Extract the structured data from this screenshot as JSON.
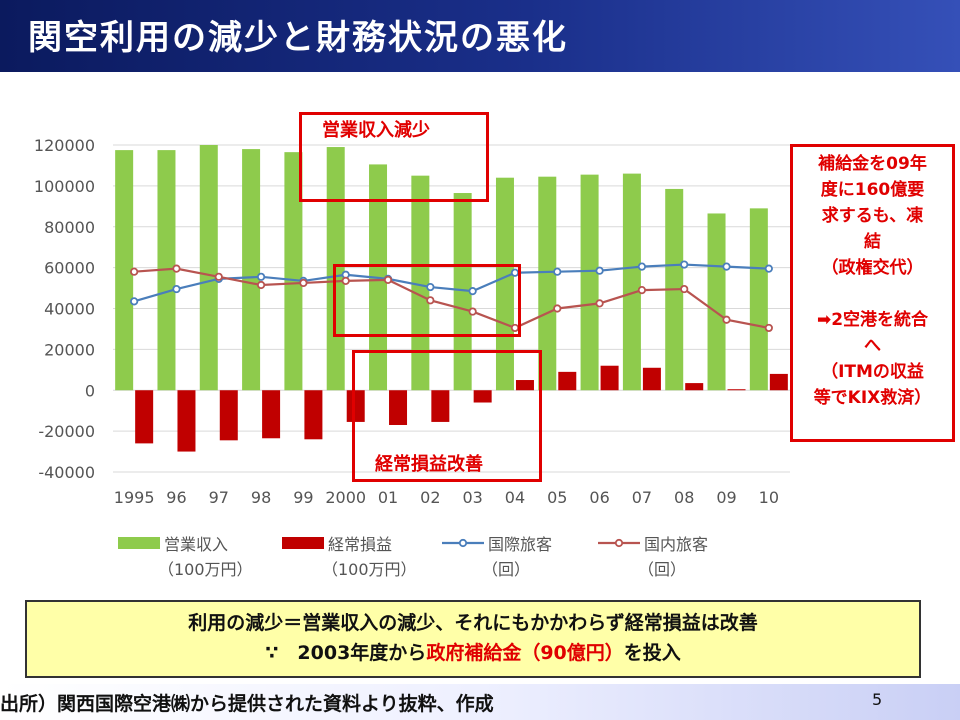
{
  "title": "関空利用の減少と財務状況の悪化",
  "chart_data": {
    "type": "bar",
    "categories": [
      "1995",
      "96",
      "97",
      "98",
      "99",
      "2000",
      "01",
      "02",
      "03",
      "04",
      "05",
      "06",
      "07",
      "08",
      "09",
      "10"
    ],
    "series": [
      {
        "name": "営業収入",
        "unit": "（100万円）",
        "kind": "bar",
        "color": "#8ecb4c",
        "values": [
          117500,
          117500,
          120000,
          118000,
          116500,
          119000,
          110500,
          105000,
          96500,
          104000,
          104500,
          105500,
          106000,
          98500,
          86500,
          89000
        ]
      },
      {
        "name": "経常損益",
        "unit": "（100万円）",
        "kind": "bar",
        "color": "#c00000",
        "values": [
          -26000,
          -30000,
          -24500,
          -23500,
          -24000,
          -15500,
          -17000,
          -15500,
          -6000,
          5000,
          9000,
          12000,
          11000,
          3500,
          500,
          8000
        ]
      },
      {
        "name": "国際旅客",
        "unit": "（回）",
        "kind": "line",
        "color": "#4a7ebb",
        "values": [
          43500,
          49500,
          54500,
          55500,
          53500,
          56500,
          54500,
          50500,
          48500,
          57500,
          58000,
          58500,
          60500,
          61500,
          60500,
          59500
        ]
      },
      {
        "name": "国内旅客",
        "unit": "（回）",
        "kind": "line",
        "color": "#b85450",
        "values": [
          58000,
          59500,
          55500,
          51500,
          52500,
          53500,
          54000,
          44000,
          38500,
          30500,
          40000,
          42500,
          49000,
          49500,
          34500,
          30500
        ]
      }
    ],
    "yticks": [
      120000,
      100000,
      80000,
      60000,
      40000,
      20000,
      0,
      -20000,
      -40000
    ],
    "ylim": [
      -40000,
      120000
    ],
    "legend_position": "bottom",
    "grid": true
  },
  "annotations": {
    "revenue_decrease": "営業収入減少",
    "profit_improve": "経常損益改善"
  },
  "side_note": {
    "lines": [
      "補給金を09年",
      "度に160億要",
      "求するも、凍",
      "結",
      "（政権交代）",
      "",
      "➡2空港を統合",
      "へ",
      "（ITMの収益",
      "等でKIX救済）"
    ]
  },
  "summary": {
    "line1": "利用の減少＝営業収入の減少、それにもかかわらず経常損益は改善",
    "line2_prefix": "∵　2003年度から",
    "line2_red": "政府補給金（90億円）",
    "line2_suffix": "を投入"
  },
  "footer": {
    "source": "出所）関西国際空港㈱から提供された資料より抜粋、作成",
    "page_number": "5"
  }
}
